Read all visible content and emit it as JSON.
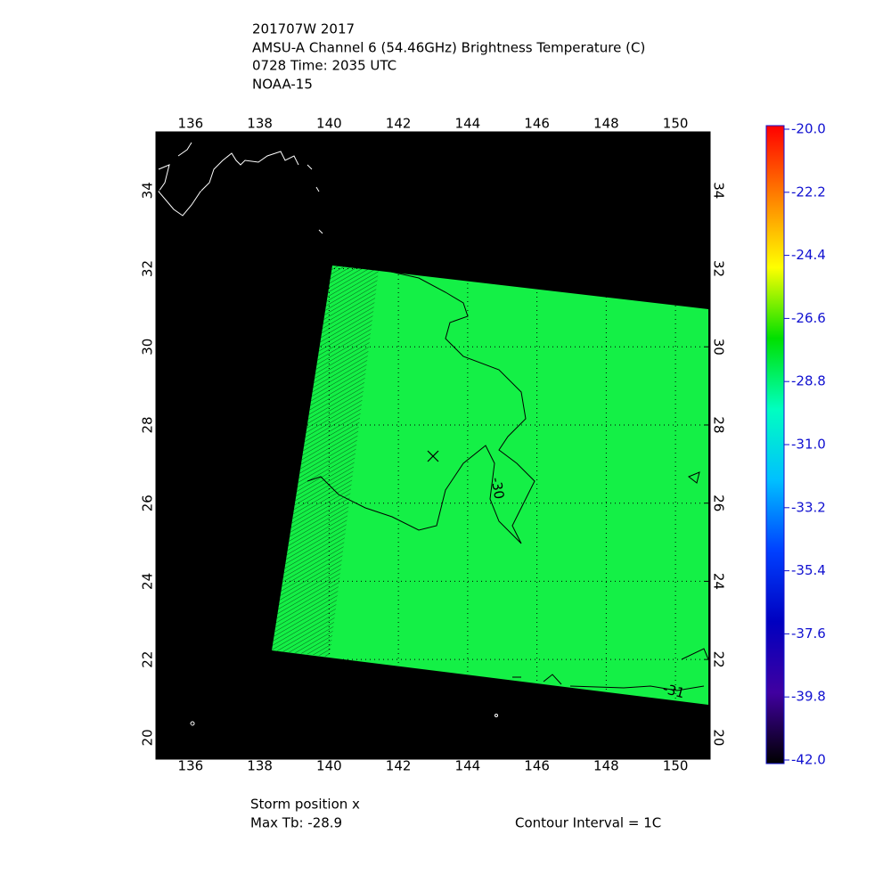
{
  "header": {
    "lines": [
      "201707W 2017",
      "AMSU-A Channel 6 (54.46GHz) Brightness Temperature (C)",
      "0728 Time: 2035 UTC",
      "NOAA-15"
    ]
  },
  "map": {
    "xlim": [
      135,
      151
    ],
    "ylim": [
      19.45,
      35.5
    ],
    "xticks": [
      136,
      138,
      140,
      142,
      144,
      146,
      148,
      150
    ],
    "yticks": [
      20,
      22,
      24,
      26,
      28,
      30,
      32,
      34
    ],
    "background": "#000000",
    "swath_color": "#14f046",
    "contour_labels": [
      "-30",
      "-31"
    ]
  },
  "colorbar": {
    "range": [
      -42,
      -20
    ],
    "ticks": [
      {
        "value": -20,
        "label": "-20.0"
      },
      -22.2,
      -24.4,
      -26.6,
      -28.8,
      {
        "value": -31,
        "label": "-31.0"
      },
      -33.2,
      -35.4,
      -37.6,
      -39.8,
      {
        "value": -42,
        "label": "-42.0"
      }
    ],
    "colors": [
      "#ff0000",
      "#ff8000",
      "#ffff00",
      "#00e000",
      "#00ffc0",
      "#00c0ff",
      "#0040ff",
      "#0000c0",
      "#4000a0",
      "#000000"
    ]
  },
  "footer": {
    "storm_position": "Storm position x",
    "max_tb": "Max Tb: -28.9",
    "contour_interval": "Contour Interval = 1C"
  }
}
